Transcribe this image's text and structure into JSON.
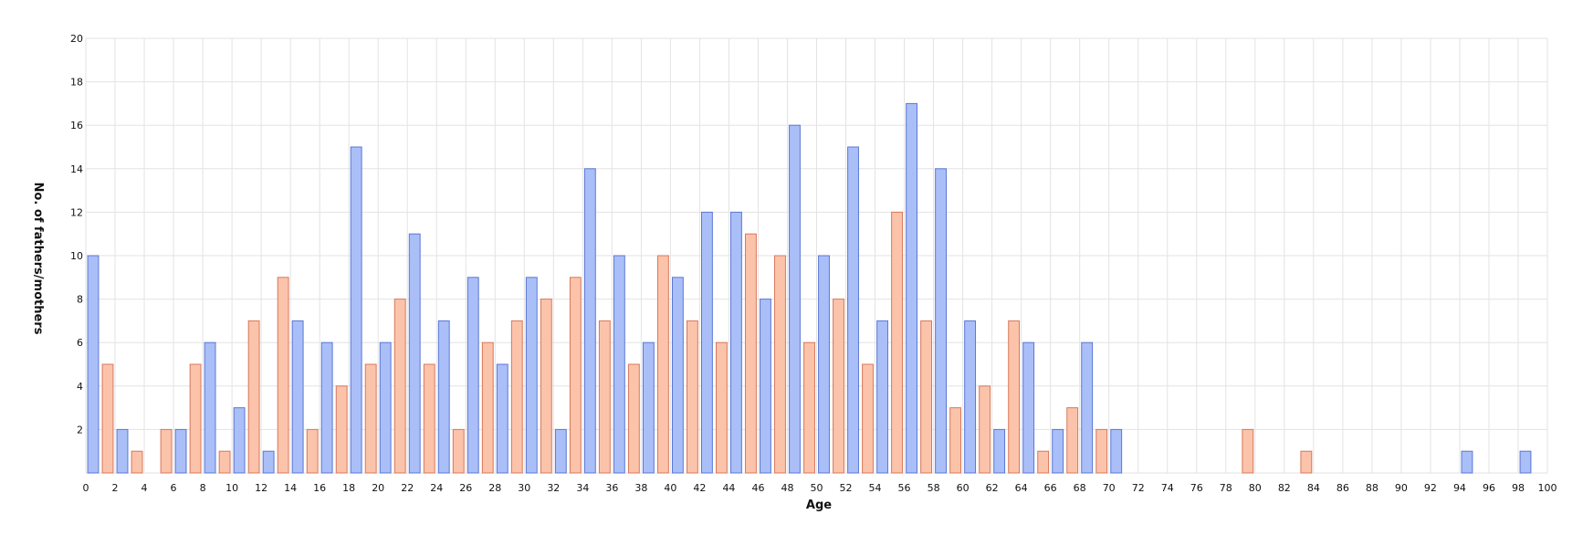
{
  "chart_data": {
    "type": "bar",
    "title": "",
    "xlabel": "Age",
    "ylabel": "No. of fathers/mothers",
    "xlim": [
      0,
      100
    ],
    "ylim": [
      0,
      20
    ],
    "x_ticks": [
      "0",
      "2",
      "4",
      "6",
      "8",
      "10",
      "12",
      "14",
      "16",
      "18",
      "20",
      "22",
      "24",
      "26",
      "28",
      "30",
      "32",
      "34",
      "36",
      "38",
      "40",
      "42",
      "44",
      "46",
      "48",
      "50",
      "52",
      "54",
      "56",
      "58",
      "60",
      "62",
      "64",
      "66",
      "68",
      "70",
      "72",
      "74",
      "76",
      "78",
      "80",
      "82",
      "84",
      "86",
      "88",
      "90",
      "92",
      "94",
      "96",
      "98",
      "100"
    ],
    "y_ticks": [
      "2",
      "4",
      "6",
      "8",
      "10",
      "12",
      "14",
      "16",
      "18",
      "20"
    ],
    "grid": true,
    "colors": {
      "blue_fill": "#aabff8",
      "blue_stroke": "#5a77d6",
      "orange_fill": "#fcc3ab",
      "orange_stroke": "#d7785a"
    },
    "series": [
      {
        "color": "blue",
        "points": [
          {
            "x": 0,
            "y": 10
          },
          {
            "x": 2,
            "y": 2
          },
          {
            "x": 6,
            "y": 2
          },
          {
            "x": 8,
            "y": 6
          },
          {
            "x": 10,
            "y": 3
          },
          {
            "x": 12,
            "y": 1
          },
          {
            "x": 14,
            "y": 7
          },
          {
            "x": 16,
            "y": 6
          },
          {
            "x": 18,
            "y": 15
          },
          {
            "x": 20,
            "y": 6
          },
          {
            "x": 22,
            "y": 11
          },
          {
            "x": 24,
            "y": 7
          },
          {
            "x": 26,
            "y": 9
          },
          {
            "x": 28,
            "y": 5
          },
          {
            "x": 30,
            "y": 9
          },
          {
            "x": 32,
            "y": 2
          },
          {
            "x": 34,
            "y": 14
          },
          {
            "x": 36,
            "y": 10
          },
          {
            "x": 38,
            "y": 6
          },
          {
            "x": 40,
            "y": 9
          },
          {
            "x": 42,
            "y": 12
          },
          {
            "x": 44,
            "y": 12
          },
          {
            "x": 46,
            "y": 8
          },
          {
            "x": 48,
            "y": 16
          },
          {
            "x": 50,
            "y": 10
          },
          {
            "x": 52,
            "y": 15
          },
          {
            "x": 54,
            "y": 7
          },
          {
            "x": 56,
            "y": 17
          },
          {
            "x": 58,
            "y": 14
          },
          {
            "x": 60,
            "y": 7
          },
          {
            "x": 62,
            "y": 2
          },
          {
            "x": 64,
            "y": 6
          },
          {
            "x": 66,
            "y": 2
          },
          {
            "x": 68,
            "y": 6
          },
          {
            "x": 70,
            "y": 2
          },
          {
            "x": 94,
            "y": 1
          },
          {
            "x": 98,
            "y": 1
          }
        ]
      },
      {
        "color": "orange",
        "points": [
          {
            "x": 1,
            "y": 5
          },
          {
            "x": 3,
            "y": 1
          },
          {
            "x": 5,
            "y": 2
          },
          {
            "x": 7,
            "y": 5
          },
          {
            "x": 9,
            "y": 1
          },
          {
            "x": 11,
            "y": 7
          },
          {
            "x": 13,
            "y": 9
          },
          {
            "x": 15,
            "y": 2
          },
          {
            "x": 17,
            "y": 4
          },
          {
            "x": 19,
            "y": 5
          },
          {
            "x": 21,
            "y": 8
          },
          {
            "x": 23,
            "y": 5
          },
          {
            "x": 25,
            "y": 2
          },
          {
            "x": 27,
            "y": 6
          },
          {
            "x": 29,
            "y": 7
          },
          {
            "x": 31,
            "y": 8
          },
          {
            "x": 33,
            "y": 9
          },
          {
            "x": 35,
            "y": 7
          },
          {
            "x": 37,
            "y": 5
          },
          {
            "x": 39,
            "y": 10
          },
          {
            "x": 41,
            "y": 7
          },
          {
            "x": 43,
            "y": 6
          },
          {
            "x": 45,
            "y": 11
          },
          {
            "x": 47,
            "y": 10
          },
          {
            "x": 49,
            "y": 6
          },
          {
            "x": 51,
            "y": 8
          },
          {
            "x": 53,
            "y": 5
          },
          {
            "x": 55,
            "y": 12
          },
          {
            "x": 57,
            "y": 7
          },
          {
            "x": 59,
            "y": 3
          },
          {
            "x": 61,
            "y": 4
          },
          {
            "x": 63,
            "y": 7
          },
          {
            "x": 65,
            "y": 1
          },
          {
            "x": 67,
            "y": 3
          },
          {
            "x": 69,
            "y": 2
          },
          {
            "x": 79,
            "y": 2
          },
          {
            "x": 83,
            "y": 1
          }
        ]
      }
    ]
  }
}
